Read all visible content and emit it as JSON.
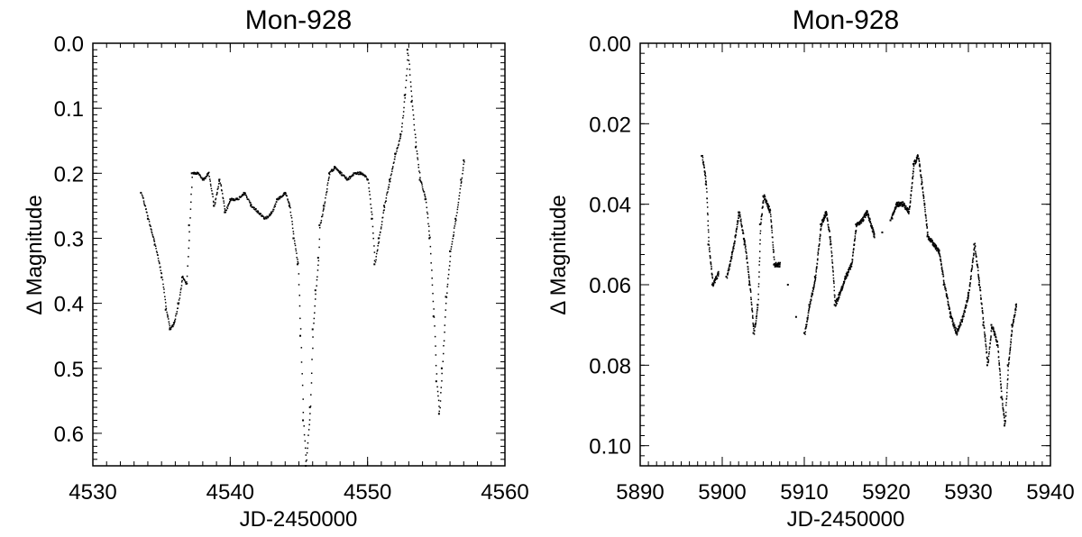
{
  "chart_data": [
    {
      "type": "scatter",
      "title": "Mon-928",
      "xlabel": "JD-2450000",
      "ylabel": "Δ Magnitude",
      "xlim": [
        4530,
        4560
      ],
      "ylim": [
        0.0,
        0.65
      ],
      "y_inverted": true,
      "xticks": [
        "4530",
        "4540",
        "4550",
        "4560"
      ],
      "yticks": [
        "0.0",
        "0.1",
        "0.2",
        "0.3",
        "0.4",
        "0.5",
        "0.6"
      ],
      "point_color": "#000000",
      "points": [
        [
          4533.5,
          0.23
        ],
        [
          4534,
          0.27
        ],
        [
          4534.5,
          0.31
        ],
        [
          4535,
          0.36
        ],
        [
          4535.3,
          0.41
        ],
        [
          4535.6,
          0.44
        ],
        [
          4535.9,
          0.43
        ],
        [
          4536.2,
          0.4
        ],
        [
          4536.5,
          0.36
        ],
        [
          4536.8,
          0.37
        ],
        [
          4537,
          0.28
        ],
        [
          4537.2,
          0.2
        ],
        [
          4537.6,
          0.2
        ],
        [
          4538,
          0.21
        ],
        [
          4538.4,
          0.2
        ],
        [
          4538.8,
          0.25
        ],
        [
          4539.2,
          0.21
        ],
        [
          4539.6,
          0.26
        ],
        [
          4540,
          0.24
        ],
        [
          4540.5,
          0.24
        ],
        [
          4541,
          0.23
        ],
        [
          4541.5,
          0.25
        ],
        [
          4542,
          0.26
        ],
        [
          4542.5,
          0.27
        ],
        [
          4543,
          0.26
        ],
        [
          4543.4,
          0.24
        ],
        [
          4544,
          0.23
        ],
        [
          4544.3,
          0.25
        ],
        [
          4544.6,
          0.3
        ],
        [
          4544.9,
          0.34
        ],
        [
          4545.1,
          0.45
        ],
        [
          4545.3,
          0.58
        ],
        [
          4545.5,
          0.65
        ],
        [
          4545.8,
          0.56
        ],
        [
          4546,
          0.44
        ],
        [
          4546.2,
          0.38
        ],
        [
          4546.4,
          0.33
        ],
        [
          4546.5,
          0.28
        ],
        [
          4546.8,
          0.25
        ],
        [
          4547.2,
          0.2
        ],
        [
          4547.6,
          0.19
        ],
        [
          4548,
          0.2
        ],
        [
          4548.5,
          0.21
        ],
        [
          4549,
          0.2
        ],
        [
          4549.5,
          0.2
        ],
        [
          4550,
          0.21
        ],
        [
          4550.3,
          0.27
        ],
        [
          4550.5,
          0.34
        ],
        [
          4550.8,
          0.3
        ],
        [
          4551.2,
          0.25
        ],
        [
          4551.6,
          0.21
        ],
        [
          4552,
          0.17
        ],
        [
          4552.4,
          0.14
        ],
        [
          4552.7,
          0.08
        ],
        [
          4552.9,
          0.01
        ],
        [
          4553.2,
          0.09
        ],
        [
          4553.5,
          0.16
        ],
        [
          4553.8,
          0.21
        ],
        [
          4554.2,
          0.24
        ],
        [
          4554.5,
          0.3
        ],
        [
          4554.8,
          0.42
        ],
        [
          4555,
          0.52
        ],
        [
          4555.2,
          0.57
        ],
        [
          4555.4,
          0.5
        ],
        [
          4555.7,
          0.39
        ],
        [
          4556,
          0.32
        ],
        [
          4556.4,
          0.27
        ],
        [
          4556.8,
          0.21
        ],
        [
          4557,
          0.18
        ]
      ]
    },
    {
      "type": "scatter",
      "title": "Mon-928",
      "xlabel": "JD-2450000",
      "ylabel": "Δ Magnitude",
      "xlim": [
        5890,
        5940
      ],
      "ylim": [
        0.0,
        0.105
      ],
      "y_inverted": true,
      "xticks": [
        "5890",
        "5900",
        "5910",
        "5920",
        "5930",
        "5940"
      ],
      "yticks": [
        "0.00",
        "0.02",
        "0.04",
        "0.06",
        "0.08",
        "0.10"
      ],
      "point_color": "#000000",
      "points": [
        [
          5897.5,
          0.028
        ],
        [
          5898,
          0.035
        ],
        [
          5898.3,
          0.05
        ],
        [
          5898.8,
          0.06
        ],
        [
          5899.5,
          0.057
        ],
        [
          5900.5,
          0.058
        ],
        [
          5901.2,
          0.052
        ],
        [
          5902,
          0.042
        ],
        [
          5902.7,
          0.05
        ],
        [
          5903.3,
          0.06
        ],
        [
          5903.8,
          0.072
        ],
        [
          5904.3,
          0.065
        ],
        [
          5904.6,
          0.045
        ],
        [
          5905,
          0.038
        ],
        [
          5905.8,
          0.042
        ],
        [
          5906.3,
          0.055
        ],
        [
          5907,
          0.055
        ],
        [
          5908,
          0.06
        ],
        [
          5909,
          0.068
        ],
        [
          5910,
          0.072
        ],
        [
          5910.6,
          0.065
        ],
        [
          5911.3,
          0.058
        ],
        [
          5912,
          0.045
        ],
        [
          5912.6,
          0.042
        ],
        [
          5913.2,
          0.05
        ],
        [
          5913.7,
          0.065
        ],
        [
          5914.3,
          0.062
        ],
        [
          5915,
          0.058
        ],
        [
          5915.7,
          0.055
        ],
        [
          5916.3,
          0.045
        ],
        [
          5917,
          0.044
        ],
        [
          5917.6,
          0.042
        ],
        [
          5918.5,
          0.048
        ],
        [
          5919.5,
          0.047
        ],
        [
          5920.5,
          0.044
        ],
        [
          5921.2,
          0.04
        ],
        [
          5922,
          0.04
        ],
        [
          5922.7,
          0.042
        ],
        [
          5923.3,
          0.03
        ],
        [
          5923.8,
          0.028
        ],
        [
          5924.3,
          0.035
        ],
        [
          5925,
          0.048
        ],
        [
          5925.7,
          0.05
        ],
        [
          5926.4,
          0.052
        ],
        [
          5927,
          0.06
        ],
        [
          5927.8,
          0.068
        ],
        [
          5928.5,
          0.072
        ],
        [
          5929.3,
          0.068
        ],
        [
          5930,
          0.062
        ],
        [
          5930.7,
          0.05
        ],
        [
          5931.3,
          0.06
        ],
        [
          5931.8,
          0.07
        ],
        [
          5932.3,
          0.08
        ],
        [
          5932.8,
          0.07
        ],
        [
          5933.5,
          0.075
        ],
        [
          5934,
          0.088
        ],
        [
          5934.4,
          0.095
        ],
        [
          5934.8,
          0.08
        ],
        [
          5935.3,
          0.07
        ],
        [
          5935.8,
          0.065
        ]
      ]
    }
  ]
}
